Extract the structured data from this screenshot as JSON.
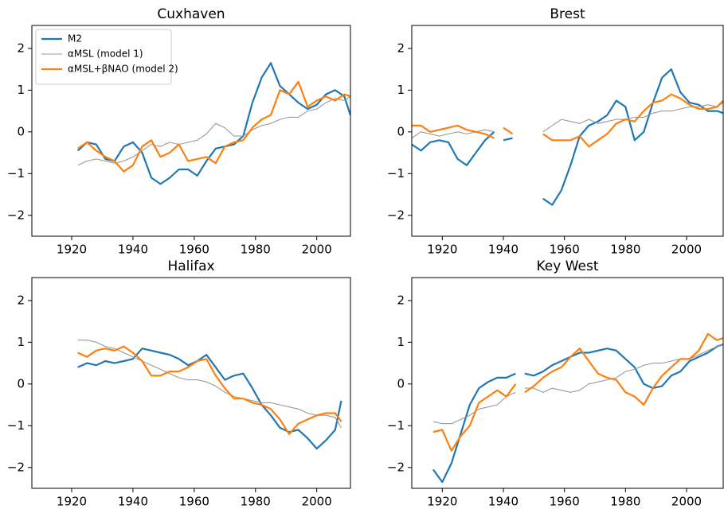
{
  "chart_data": [
    {
      "type": "line",
      "title": "Cuxhaven",
      "legend": "upper left",
      "x": [
        1922,
        1925,
        1928,
        1931,
        1934,
        1937,
        1940,
        1943,
        1946,
        1949,
        1952,
        1955,
        1958,
        1961,
        1964,
        1967,
        1970,
        1973,
        1976,
        1979,
        1982,
        1985,
        1988,
        1991,
        1994,
        1997,
        2000,
        2003,
        2006,
        2009,
        2011
      ],
      "series": [
        {
          "name": "M2",
          "color": "#1f77b4",
          "values": [
            -0.45,
            -0.25,
            -0.3,
            -0.65,
            -0.7,
            -0.35,
            -0.25,
            -0.5,
            -1.1,
            -1.25,
            -1.1,
            -0.9,
            -0.9,
            -1.05,
            -0.7,
            -0.4,
            -0.35,
            -0.3,
            -0.1,
            0.7,
            1.3,
            1.65,
            1.1,
            0.9,
            0.7,
            0.55,
            0.65,
            0.9,
            1.0,
            0.85,
            0.4
          ]
        },
        {
          "name": "αMSL (model 1)",
          "color": "#999999",
          "values": [
            -0.8,
            -0.7,
            -0.65,
            -0.7,
            -0.75,
            -0.7,
            -0.6,
            -0.45,
            -0.3,
            -0.35,
            -0.25,
            -0.3,
            -0.25,
            -0.2,
            -0.05,
            0.2,
            0.1,
            -0.1,
            -0.1,
            0.05,
            0.15,
            0.2,
            0.3,
            0.35,
            0.35,
            0.5,
            0.55,
            0.7,
            0.8,
            0.75,
            0.85
          ]
        },
        {
          "name": "αMSL+βNAO (model 2)",
          "color": "#ff7f0e",
          "values": [
            -0.4,
            -0.25,
            -0.45,
            -0.6,
            -0.7,
            -0.95,
            -0.8,
            -0.35,
            -0.2,
            -0.6,
            -0.5,
            -0.3,
            -0.7,
            -0.65,
            -0.6,
            -0.75,
            -0.35,
            -0.25,
            -0.2,
            0.1,
            0.3,
            0.4,
            1.0,
            0.9,
            1.2,
            0.6,
            0.75,
            0.85,
            0.75,
            0.9,
            0.85
          ]
        }
      ],
      "xlim": [
        1907,
        2011
      ],
      "ylim": [
        -2.5,
        2.55
      ],
      "xticks": [
        1920,
        1940,
        1960,
        1980,
        2000
      ],
      "yticks": [
        {
          "value": -2,
          "label": "−2"
        },
        {
          "value": -1,
          "label": "−1"
        },
        0,
        1,
        2
      ]
    },
    {
      "type": "line",
      "title": "Brest",
      "x": [
        1910,
        1913,
        1916,
        1919,
        1922,
        1925,
        1928,
        1931,
        1934,
        1937,
        1938,
        1940,
        1943,
        1946,
        1949,
        1953,
        1956,
        1959,
        1962,
        1965,
        1968,
        1971,
        1974,
        1977,
        1980,
        1983,
        1986,
        1989,
        1992,
        1995,
        1998,
        2001,
        2004,
        2007,
        2010,
        2012
      ],
      "series": [
        {
          "color": "#1f77b4",
          "values": [
            -0.3,
            -0.45,
            -0.25,
            -0.2,
            -0.25,
            -0.65,
            -0.8,
            -0.5,
            -0.2,
            0.0,
            null,
            -0.2,
            -0.15,
            null,
            null,
            -1.6,
            -1.75,
            -1.4,
            -0.8,
            -0.1,
            0.15,
            0.25,
            0.4,
            0.75,
            0.6,
            -0.2,
            0.0,
            0.7,
            1.3,
            1.5,
            0.95,
            0.7,
            0.65,
            0.5,
            0.5,
            0.45
          ]
        },
        {
          "color": "#999999",
          "values": [
            -0.15,
            0.0,
            -0.05,
            -0.1,
            -0.05,
            0.0,
            -0.05,
            0.0,
            0.05,
            0.0,
            null,
            null,
            null,
            null,
            null,
            0.0,
            0.15,
            0.3,
            0.25,
            0.2,
            0.3,
            0.2,
            0.25,
            0.3,
            0.3,
            0.35,
            0.35,
            0.45,
            0.5,
            0.5,
            0.55,
            0.6,
            0.6,
            0.65,
            0.6,
            0.7
          ]
        },
        {
          "color": "#ff7f0e",
          "values": [
            0.15,
            0.15,
            0.0,
            0.05,
            0.1,
            0.15,
            0.05,
            0.0,
            -0.05,
            -0.15,
            null,
            0.1,
            -0.05,
            null,
            null,
            -0.05,
            -0.2,
            -0.2,
            -0.2,
            -0.1,
            -0.35,
            -0.2,
            -0.05,
            0.2,
            0.3,
            0.25,
            0.5,
            0.7,
            0.75,
            0.9,
            0.8,
            0.65,
            0.55,
            0.55,
            0.6,
            0.75
          ]
        }
      ],
      "xlim": [
        1910,
        2012
      ],
      "ylim": [
        -2.5,
        2.55
      ],
      "xticks": [
        1920,
        1940,
        1960,
        1980,
        2000
      ],
      "yticks": [
        {
          "value": -2,
          "label": "−2"
        },
        {
          "value": -1,
          "label": "−1"
        },
        0,
        1,
        2
      ]
    },
    {
      "type": "line",
      "title": "Halifax",
      "x": [
        1922,
        1925,
        1928,
        1931,
        1934,
        1937,
        1940,
        1943,
        1946,
        1949,
        1952,
        1955,
        1958,
        1961,
        1964,
        1967,
        1970,
        1973,
        1976,
        1979,
        1982,
        1985,
        1988,
        1991,
        1994,
        1997,
        2000,
        2003,
        2006,
        2008
      ],
      "series": [
        {
          "color": "#1f77b4",
          "values": [
            0.4,
            0.5,
            0.45,
            0.55,
            0.5,
            0.55,
            0.6,
            0.85,
            0.8,
            0.75,
            0.7,
            0.6,
            0.45,
            0.55,
            0.7,
            0.4,
            0.1,
            0.2,
            0.25,
            -0.1,
            -0.5,
            -0.75,
            -1.05,
            -1.15,
            -1.1,
            -1.3,
            -1.55,
            -1.35,
            -1.1,
            -0.4
          ]
        },
        {
          "color": "#999999",
          "values": [
            1.05,
            1.05,
            1.0,
            0.9,
            0.85,
            0.75,
            0.65,
            0.55,
            0.45,
            0.35,
            0.25,
            0.15,
            0.1,
            0.1,
            0.05,
            -0.05,
            -0.2,
            -0.3,
            -0.35,
            -0.4,
            -0.45,
            -0.45,
            -0.5,
            -0.55,
            -0.6,
            -0.7,
            -0.75,
            -0.75,
            -0.8,
            -1.05
          ]
        },
        {
          "color": "#ff7f0e",
          "values": [
            0.75,
            0.65,
            0.8,
            0.85,
            0.8,
            0.9,
            0.75,
            0.55,
            0.2,
            0.2,
            0.3,
            0.3,
            0.4,
            0.55,
            0.6,
            0.2,
            -0.1,
            -0.35,
            -0.35,
            -0.45,
            -0.5,
            -0.6,
            -0.85,
            -1.2,
            -0.95,
            -0.85,
            -0.75,
            -0.7,
            -0.7,
            -0.9
          ]
        }
      ],
      "xlim": [
        1907,
        2011
      ],
      "ylim": [
        -2.5,
        2.55
      ],
      "xticks": [
        1920,
        1940,
        1960,
        1980,
        2000
      ],
      "yticks": [
        {
          "value": -2,
          "label": "−2"
        },
        {
          "value": -1,
          "label": "−1"
        },
        0,
        1,
        2
      ]
    },
    {
      "type": "line",
      "title": "Key West",
      "x": [
        1917,
        1920,
        1923,
        1926,
        1929,
        1932,
        1935,
        1938,
        1941,
        1944,
        1945,
        1947,
        1950,
        1953,
        1956,
        1959,
        1962,
        1965,
        1968,
        1971,
        1974,
        1977,
        1980,
        1983,
        1986,
        1989,
        1992,
        1995,
        1998,
        2001,
        2004,
        2007,
        2010,
        2012
      ],
      "series": [
        {
          "color": "#1f77b4",
          "values": [
            -2.05,
            -2.35,
            -1.9,
            -1.2,
            -0.5,
            -0.1,
            0.05,
            0.15,
            0.15,
            0.25,
            null,
            0.25,
            0.2,
            0.3,
            0.45,
            0.55,
            0.65,
            0.75,
            0.75,
            0.8,
            0.85,
            0.8,
            0.6,
            0.4,
            0.0,
            -0.1,
            -0.05,
            0.2,
            0.3,
            0.55,
            0.65,
            0.75,
            0.9,
            0.95
          ]
        },
        {
          "color": "#999999",
          "values": [
            -0.9,
            -0.95,
            -0.95,
            -0.85,
            -0.75,
            -0.6,
            -0.55,
            -0.5,
            -0.3,
            -0.2,
            null,
            -0.1,
            -0.1,
            -0.2,
            -0.1,
            -0.15,
            -0.2,
            -0.15,
            0.0,
            0.05,
            0.1,
            0.15,
            0.3,
            0.35,
            0.45,
            0.5,
            0.5,
            0.55,
            0.6,
            0.6,
            0.7,
            0.8,
            0.9,
            0.95
          ]
        },
        {
          "color": "#ff7f0e",
          "values": [
            -1.15,
            -1.1,
            -1.6,
            -1.25,
            -1.0,
            -0.45,
            -0.3,
            -0.15,
            -0.3,
            0.0,
            null,
            -0.2,
            -0.05,
            0.15,
            0.3,
            0.4,
            0.65,
            0.85,
            0.55,
            0.25,
            0.15,
            0.1,
            -0.2,
            -0.3,
            -0.5,
            -0.1,
            0.2,
            0.4,
            0.6,
            0.6,
            0.8,
            1.2,
            1.05,
            1.1
          ]
        }
      ],
      "xlim": [
        1910,
        2012
      ],
      "ylim": [
        -2.5,
        2.55
      ],
      "xticks": [
        1920,
        1940,
        1960,
        1980,
        2000
      ],
      "yticks": [
        {
          "value": -2,
          "label": "−2"
        },
        {
          "value": -1,
          "label": "−1"
        },
        0,
        1,
        2
      ]
    }
  ]
}
